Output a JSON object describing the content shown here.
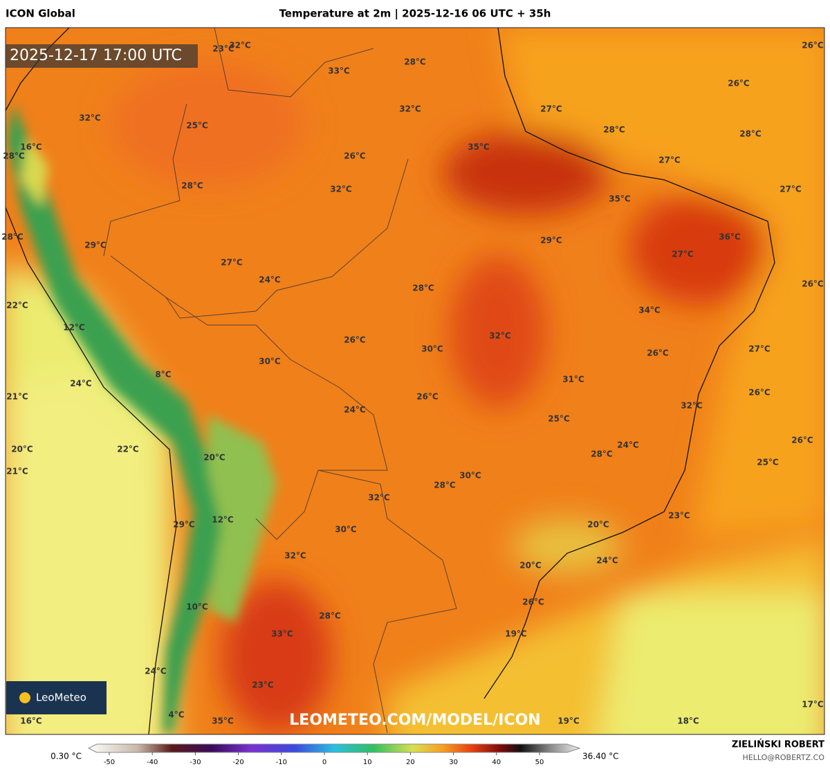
{
  "header": {
    "model": "ICON Global",
    "title": "Temperature at 2m | 2025-12-16 06 UTC + 35h"
  },
  "valid_time": "2025-12-17 17:00 UTC",
  "logo": "LeoMeteo",
  "watermark": "LEOMETEO.COM/MODEL/ICON",
  "map_labels": [
    "23°C",
    "32°C",
    "33°C",
    "28°C",
    "26°C",
    "26°C",
    "32°C",
    "25°C",
    "32°C",
    "27°C",
    "28°C",
    "28°C",
    "16°C",
    "28°C",
    "35°C",
    "26°C",
    "27°C",
    "28°C",
    "32°C",
    "27°C",
    "35°C",
    "28°C",
    "29°C",
    "36°C",
    "29°C",
    "27°C",
    "27°C",
    "24°C",
    "28°C",
    "26°C",
    "22°C",
    "34°C",
    "12°C",
    "32°C",
    "26°C",
    "30°C",
    "26°C",
    "27°C",
    "8°C",
    "30°C",
    "24°C",
    "31°C",
    "21°C",
    "26°C",
    "26°C",
    "32°C",
    "24°C",
    "25°C",
    "24°C",
    "26°C",
    "20°C",
    "22°C",
    "28°C",
    "20°C",
    "25°C",
    "21°C",
    "30°C",
    "28°C",
    "32°C",
    "12°C",
    "23°C",
    "29°C",
    "20°C",
    "30°C",
    "32°C",
    "24°C",
    "20°C",
    "10°C",
    "26°C",
    "28°C",
    "33°C",
    "19°C",
    "24°C",
    "23°C",
    "17°C",
    "4°C",
    "16°C",
    "35°C",
    "19°C",
    "18°C"
  ],
  "colorbar": {
    "min_label": "0.30 °C",
    "max_label": "36.40 °C",
    "ticks": [
      -50,
      -40,
      -30,
      -20,
      -10,
      0,
      10,
      20,
      30,
      40,
      50
    ]
  },
  "credits": {
    "author": "ZIELIŃSKI ROBERT",
    "email": "HELLO@ROBERTZ.CO"
  }
}
